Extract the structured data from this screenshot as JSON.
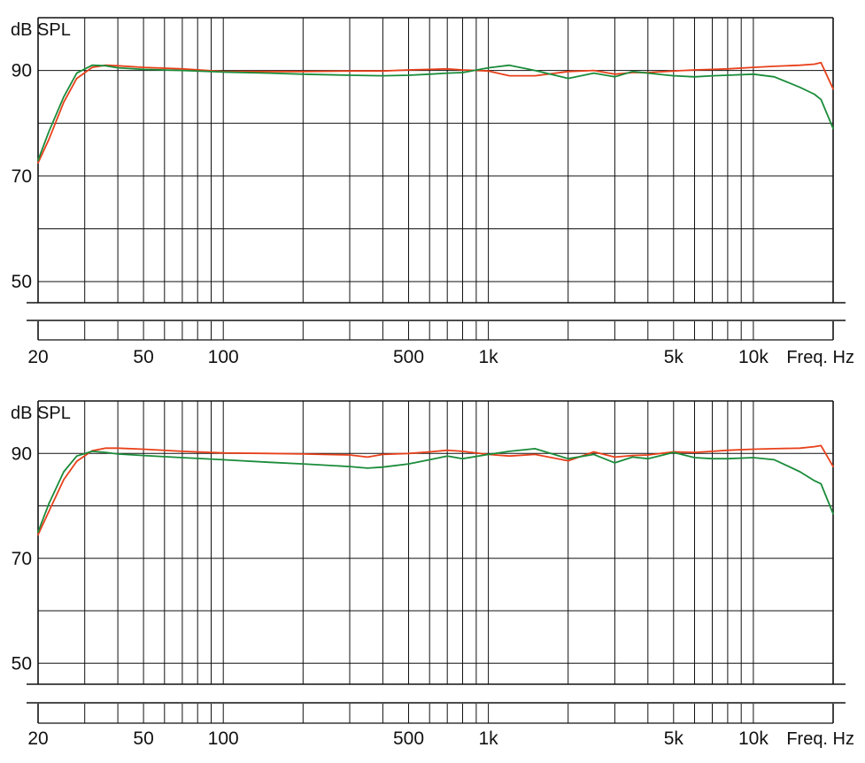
{
  "charts_meta": {
    "y_axis_unit": "dB SPL",
    "x_axis_unit": "Freq. Hz"
  },
  "colors": {
    "red_series": "#e8401a",
    "green_series": "#1a8c3a",
    "grid": "#111111"
  },
  "chart_data": [
    {
      "type": "line",
      "title": "",
      "xlabel": "Freq. Hz",
      "ylabel": "dB SPL",
      "x_scale": "log",
      "xlim": [
        20,
        20000
      ],
      "ylim": [
        46,
        100
      ],
      "x_tick_labels": [
        {
          "value": 20,
          "label": "20"
        },
        {
          "value": 50,
          "label": "50"
        },
        {
          "value": 100,
          "label": "100"
        },
        {
          "value": 500,
          "label": "500"
        },
        {
          "value": 1000,
          "label": "1k"
        },
        {
          "value": 5000,
          "label": "5k"
        },
        {
          "value": 10000,
          "label": "10k"
        }
      ],
      "y_tick_labels": [
        {
          "value": 90,
          "label": "90"
        },
        {
          "value": 70,
          "label": "70"
        },
        {
          "value": 50,
          "label": "50"
        }
      ],
      "grid": true,
      "series": [
        {
          "color": "#e8401a",
          "x": [
            20,
            22,
            25,
            28,
            32,
            36,
            40,
            50,
            70,
            100,
            150,
            200,
            300,
            400,
            500,
            600,
            700,
            800,
            1000,
            1200,
            1500,
            2000,
            2500,
            3000,
            3500,
            4000,
            5000,
            6000,
            7000,
            8000,
            10000,
            12000,
            15000,
            17000,
            18000,
            20000
          ],
          "y": [
            72.5,
            77,
            84,
            88.5,
            90.6,
            91.0,
            90.9,
            90.6,
            90.3,
            89.8,
            89.8,
            89.8,
            89.9,
            89.9,
            90.1,
            90.2,
            90.3,
            90.1,
            89.9,
            89.0,
            89.0,
            89.8,
            90.0,
            89.3,
            89.6,
            89.6,
            89.9,
            90.1,
            90.2,
            90.3,
            90.6,
            90.8,
            91.0,
            91.2,
            91.5,
            86.5
          ]
        },
        {
          "color": "#1a8c3a",
          "x": [
            20,
            22,
            25,
            28,
            32,
            36,
            40,
            50,
            70,
            100,
            150,
            200,
            300,
            400,
            500,
            600,
            700,
            800,
            1000,
            1200,
            1500,
            2000,
            2500,
            3000,
            3500,
            4000,
            5000,
            6000,
            7000,
            8000,
            10000,
            12000,
            15000,
            17000,
            18000,
            20000
          ],
          "y": [
            73,
            78.5,
            85,
            89.5,
            91.0,
            90.9,
            90.5,
            90.2,
            90.0,
            89.7,
            89.5,
            89.3,
            89.1,
            89.0,
            89.1,
            89.3,
            89.5,
            89.6,
            90.5,
            91.0,
            90.0,
            88.5,
            89.5,
            88.8,
            89.8,
            89.5,
            89.0,
            88.8,
            89.0,
            89.1,
            89.3,
            88.8,
            86.8,
            85.5,
            84.5,
            79
          ]
        }
      ]
    },
    {
      "type": "line",
      "title": "",
      "xlabel": "Freq. Hz",
      "ylabel": "dB SPL",
      "x_scale": "log",
      "xlim": [
        20,
        20000
      ],
      "ylim": [
        46,
        100
      ],
      "x_tick_labels": [
        {
          "value": 20,
          "label": "20"
        },
        {
          "value": 50,
          "label": "50"
        },
        {
          "value": 100,
          "label": "100"
        },
        {
          "value": 500,
          "label": "500"
        },
        {
          "value": 1000,
          "label": "1k"
        },
        {
          "value": 5000,
          "label": "5k"
        },
        {
          "value": 10000,
          "label": "10k"
        }
      ],
      "y_tick_labels": [
        {
          "value": 90,
          "label": "90"
        },
        {
          "value": 70,
          "label": "70"
        },
        {
          "value": 50,
          "label": "50"
        }
      ],
      "grid": true,
      "series": [
        {
          "color": "#e8401a",
          "x": [
            20,
            22,
            25,
            28,
            32,
            36,
            40,
            50,
            70,
            100,
            150,
            200,
            300,
            350,
            400,
            500,
            600,
            700,
            800,
            1000,
            1200,
            1500,
            2000,
            2500,
            3000,
            3500,
            4000,
            5000,
            6000,
            7000,
            8000,
            10000,
            12000,
            15000,
            17000,
            18000,
            20000
          ],
          "y": [
            74.5,
            79,
            85,
            88.5,
            90.5,
            91.0,
            91.0,
            90.8,
            90.4,
            90.1,
            90.0,
            89.9,
            89.7,
            89.3,
            89.8,
            90.0,
            90.3,
            90.6,
            90.4,
            89.8,
            89.5,
            89.8,
            88.6,
            90.3,
            89.3,
            89.6,
            89.7,
            90.3,
            90.2,
            90.4,
            90.6,
            90.8,
            90.9,
            91.0,
            91.3,
            91.5,
            87.5
          ]
        },
        {
          "color": "#1a8c3a",
          "x": [
            20,
            22,
            25,
            28,
            32,
            36,
            40,
            50,
            70,
            100,
            150,
            200,
            300,
            350,
            400,
            500,
            600,
            700,
            800,
            1000,
            1200,
            1500,
            2000,
            2500,
            3000,
            3500,
            4000,
            5000,
            6000,
            7000,
            8000,
            10000,
            12000,
            15000,
            17000,
            18000,
            20000
          ],
          "y": [
            75,
            80.5,
            86.5,
            89.5,
            90.4,
            90.2,
            89.9,
            89.6,
            89.2,
            88.8,
            88.3,
            88.0,
            87.5,
            87.2,
            87.4,
            88.0,
            88.8,
            89.5,
            89.0,
            89.8,
            90.4,
            90.9,
            89.0,
            89.8,
            88.2,
            89.3,
            89.0,
            90.2,
            89.2,
            89.0,
            89.0,
            89.2,
            88.8,
            86.5,
            84.8,
            84.2,
            78.5
          ]
        }
      ]
    }
  ]
}
